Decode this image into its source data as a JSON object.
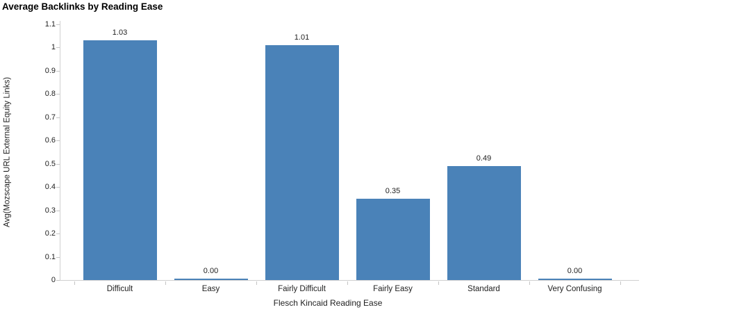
{
  "chart_data": {
    "type": "bar",
    "title": "Average Backlinks by Reading Ease",
    "xlabel": "Flesch Kincaid Reading Ease",
    "ylabel": "Avg(Mozscape URL External Equity Links)",
    "categories": [
      "Difficult",
      "Easy",
      "Fairly Difficult",
      "Fairly Easy",
      "Standard",
      "Very Confusing"
    ],
    "values": [
      1.03,
      0.0,
      1.01,
      0.35,
      0.49,
      0.0
    ],
    "value_labels": [
      "1.03",
      "0.00",
      "1.01",
      "0.35",
      "0.49",
      "0.00"
    ],
    "ylim": [
      0,
      1.1
    ],
    "yticks": [
      0,
      0.1,
      0.2,
      0.3,
      0.4,
      0.5,
      0.6,
      0.7,
      0.8,
      0.9,
      1,
      1.1
    ],
    "ytick_labels": [
      "0",
      "0.1",
      "0.2",
      "0.3",
      "0.4",
      "0.5",
      "0.6",
      "0.7",
      "0.8",
      "0.9",
      "1",
      "1.1"
    ],
    "bar_color": "#4a82b8",
    "axis_color": "#d0d0d0",
    "tick_color": "#c4c4c4",
    "text_color": "#1e1e1e",
    "grid": "off",
    "legend": "none"
  }
}
